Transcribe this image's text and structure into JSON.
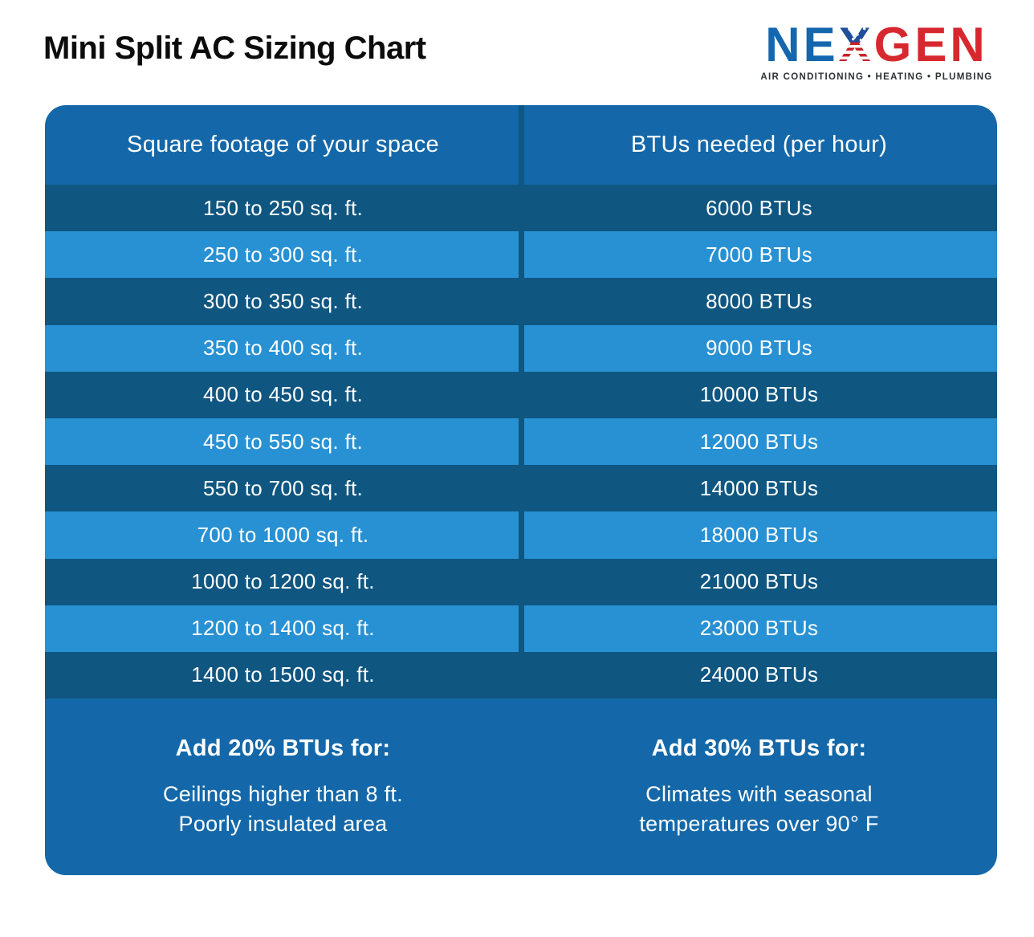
{
  "title": "Mini Split AC Sizing Chart",
  "logo": {
    "ne": "NE",
    "x": "X",
    "gen": "GEN",
    "tagline": "AIR CONDITIONING • HEATING • PLUMBING",
    "colors": {
      "blue": "#1467AE",
      "red": "#D7282F",
      "flag_blue": "#1E4E9C"
    }
  },
  "table": {
    "col1_header": "Square footage of your space",
    "col2_header": "BTUs needed (per hour)",
    "rows": [
      {
        "sqft": "150 to 250 sq. ft.",
        "btus": "6000 BTUs"
      },
      {
        "sqft": "250 to 300 sq. ft.",
        "btus": "7000 BTUs"
      },
      {
        "sqft": "300 to 350 sq. ft.",
        "btus": "8000 BTUs"
      },
      {
        "sqft": "350 to 400 sq. ft.",
        "btus": "9000 BTUs"
      },
      {
        "sqft": "400 to 450 sq. ft.",
        "btus": "10000 BTUs"
      },
      {
        "sqft": "450 to 550 sq. ft.",
        "btus": "12000 BTUs"
      },
      {
        "sqft": "550 to 700 sq. ft.",
        "btus": "14000 BTUs"
      },
      {
        "sqft": "700 to 1000 sq. ft.",
        "btus": "18000 BTUs"
      },
      {
        "sqft": "1000 to 1200 sq. ft.",
        "btus": "21000 BTUs"
      },
      {
        "sqft": "1200 to 1400 sq. ft.",
        "btus": "23000 BTUs"
      },
      {
        "sqft": "1400 to 1500 sq. ft.",
        "btus": "24000 BTUs"
      }
    ]
  },
  "notes": {
    "left": {
      "heading": "Add 20% BTUs for:",
      "line1": "Ceilings higher than 8 ft.",
      "line2": "Poorly insulated area"
    },
    "right": {
      "heading": "Add 30% BTUs for:",
      "line1": "Climates with seasonal",
      "line2": "temperatures over 90° F"
    }
  },
  "colors": {
    "header_footer_blue": "#1468A9",
    "dark_row_blue": "#0F5681",
    "light_row_blue": "#2891D3",
    "row_text": "#FFFFFF",
    "title_text": "#0C0C0C",
    "page_background": "#FFFFFF"
  },
  "chart_data": {
    "type": "table",
    "title": "Mini Split AC Sizing Chart",
    "columns": [
      "Square footage of your space",
      "BTUs needed (per hour)"
    ],
    "rows": [
      [
        "150 to 250 sq. ft.",
        "6000 BTUs"
      ],
      [
        "250 to 300 sq. ft.",
        "7000 BTUs"
      ],
      [
        "300 to 350 sq. ft.",
        "8000 BTUs"
      ],
      [
        "350 to 400 sq. ft.",
        "9000 BTUs"
      ],
      [
        "400 to 450 sq. ft.",
        "10000 BTUs"
      ],
      [
        "450 to 550 sq. ft.",
        "12000 BTUs"
      ],
      [
        "550 to 700 sq. ft.",
        "14000 BTUs"
      ],
      [
        "700 to 1000 sq. ft.",
        "18000 BTUs"
      ],
      [
        "1000 to 1200 sq. ft.",
        "21000 BTUs"
      ],
      [
        "1200 to 1400 sq. ft.",
        "23000 BTUs"
      ],
      [
        "1400 to 1500 sq. ft.",
        "24000 BTUs"
      ]
    ],
    "sqft_ranges": [
      [
        150,
        250
      ],
      [
        250,
        300
      ],
      [
        300,
        350
      ],
      [
        350,
        400
      ],
      [
        400,
        450
      ],
      [
        450,
        550
      ],
      [
        550,
        700
      ],
      [
        700,
        1000
      ],
      [
        1000,
        1200
      ],
      [
        1200,
        1400
      ],
      [
        1400,
        1500
      ]
    ],
    "btu_values": [
      6000,
      7000,
      8000,
      9000,
      10000,
      12000,
      14000,
      18000,
      21000,
      23000,
      24000
    ],
    "annotations": [
      "Add 20% BTUs for: Ceilings higher than 8 ft. Poorly insulated area",
      "Add 30% BTUs for: Climates with seasonal temperatures over 90° F"
    ]
  }
}
